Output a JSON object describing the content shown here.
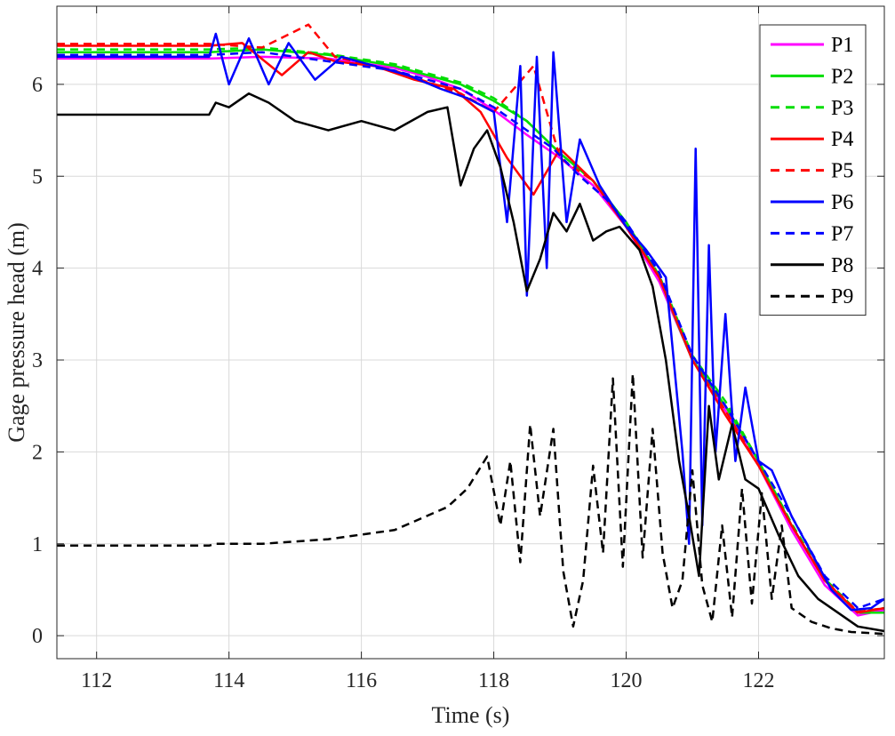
{
  "chart_data": {
    "type": "line",
    "xlabel": "Time (s)",
    "ylabel": "Gage pressure head (m)",
    "xlim": [
      111.4,
      123.9
    ],
    "ylim": [
      -0.25,
      6.85
    ],
    "xticks": [
      112,
      114,
      116,
      118,
      120,
      122
    ],
    "yticks": [
      0,
      1,
      2,
      3,
      4,
      5,
      6
    ],
    "grid": true,
    "legend_position": "top-right",
    "series": [
      {
        "name": "P1",
        "color": "#ff00ff",
        "dash": "solid",
        "x": [
          111.4,
          113.7,
          114.5,
          115.5,
          116.5,
          117.0,
          117.5,
          118.0,
          118.5,
          119.0,
          119.5,
          120.0,
          120.5,
          121.0,
          121.5,
          122.0,
          122.5,
          123.0,
          123.5,
          123.9
        ],
        "y": [
          6.28,
          6.28,
          6.3,
          6.28,
          6.18,
          6.08,
          5.95,
          5.72,
          5.45,
          5.2,
          4.9,
          4.45,
          3.85,
          3.0,
          2.45,
          1.85,
          1.15,
          0.55,
          0.22,
          0.28
        ]
      },
      {
        "name": "P2",
        "color": "#00dd00",
        "dash": "solid",
        "x": [
          111.4,
          113.7,
          114.5,
          115.5,
          116.5,
          117.5,
          118.0,
          118.5,
          119.0,
          119.5,
          120.0,
          120.5,
          120.8,
          121.0,
          121.5,
          122.0,
          122.5,
          123.0,
          123.5,
          123.9
        ],
        "y": [
          6.35,
          6.35,
          6.38,
          6.32,
          6.2,
          6.0,
          5.82,
          5.6,
          5.25,
          4.95,
          4.5,
          3.9,
          3.35,
          3.0,
          2.5,
          1.9,
          1.2,
          0.6,
          0.25,
          0.25
        ]
      },
      {
        "name": "P3",
        "color": "#00dd00",
        "dash": "dashed",
        "x": [
          111.4,
          113.7,
          114.5,
          115.5,
          116.5,
          117.5,
          118.0,
          118.5,
          119.0,
          119.5,
          120.0,
          120.5,
          121.0,
          121.5,
          122.0,
          122.5,
          123.0,
          123.5,
          123.9
        ],
        "y": [
          6.38,
          6.38,
          6.4,
          6.33,
          6.22,
          6.02,
          5.85,
          5.6,
          5.25,
          4.95,
          4.5,
          3.92,
          3.05,
          2.55,
          1.9,
          1.22,
          0.62,
          0.26,
          0.3
        ]
      },
      {
        "name": "P4",
        "color": "#ff0000",
        "dash": "solid",
        "x": [
          111.4,
          113.7,
          114.2,
          114.8,
          115.2,
          115.6,
          116.2,
          116.8,
          117.4,
          117.8,
          118.2,
          118.6,
          119.0,
          119.5,
          120.0,
          120.5,
          121.0,
          121.5,
          122.0,
          122.5,
          123.0,
          123.5,
          123.9
        ],
        "y": [
          6.42,
          6.42,
          6.45,
          6.1,
          6.35,
          6.25,
          6.2,
          6.05,
          5.95,
          5.7,
          5.2,
          4.8,
          5.3,
          4.95,
          4.45,
          3.9,
          3.0,
          2.4,
          1.85,
          1.2,
          0.6,
          0.25,
          0.3
        ]
      },
      {
        "name": "P5",
        "color": "#ff0000",
        "dash": "dashed",
        "x": [
          111.4,
          113.7,
          114.5,
          115.2,
          115.6,
          116.5,
          117.5,
          118.0,
          118.6,
          119.0,
          119.5,
          120.0,
          120.5,
          121.0,
          121.5,
          122.0,
          122.5,
          123.0,
          123.5,
          123.9
        ],
        "y": [
          6.44,
          6.44,
          6.4,
          6.65,
          6.3,
          6.15,
          5.9,
          5.7,
          6.2,
          5.2,
          4.95,
          4.45,
          3.9,
          3.0,
          2.45,
          1.85,
          1.2,
          0.6,
          0.26,
          0.3
        ]
      },
      {
        "name": "P6",
        "color": "#0000ff",
        "dash": "solid",
        "x": [
          111.4,
          113.7,
          113.8,
          114.0,
          114.3,
          114.6,
          114.9,
          115.3,
          115.7,
          116.2,
          116.7,
          117.2,
          117.6,
          118.0,
          118.2,
          118.4,
          118.5,
          118.65,
          118.8,
          118.9,
          119.1,
          119.3,
          119.6,
          120.0,
          120.3,
          120.6,
          120.85,
          120.95,
          121.05,
          121.15,
          121.25,
          121.35,
          121.5,
          121.65,
          121.8,
          122.0,
          122.2,
          122.5,
          122.8,
          123.1,
          123.4,
          123.7,
          123.9
        ],
        "y": [
          6.3,
          6.3,
          6.55,
          6.0,
          6.5,
          6.0,
          6.45,
          6.05,
          6.3,
          6.2,
          6.1,
          5.95,
          5.85,
          5.7,
          4.5,
          6.2,
          3.7,
          6.3,
          4.0,
          6.35,
          4.5,
          5.4,
          4.9,
          4.45,
          4.2,
          3.9,
          2.0,
          1.0,
          5.3,
          1.2,
          4.25,
          2.0,
          3.5,
          1.9,
          2.7,
          1.9,
          1.8,
          1.3,
          0.9,
          0.5,
          0.28,
          0.3,
          0.4
        ]
      },
      {
        "name": "P7",
        "color": "#0000ff",
        "dash": "dashed",
        "x": [
          111.4,
          113.7,
          114.5,
          115.5,
          116.5,
          117.5,
          118.0,
          118.5,
          118.9,
          119.3,
          119.7,
          120.0,
          120.5,
          121.0,
          121.5,
          122.0,
          122.5,
          123.0,
          123.5,
          123.9
        ],
        "y": [
          6.32,
          6.32,
          6.35,
          6.25,
          6.15,
          5.95,
          5.75,
          5.5,
          5.3,
          5.0,
          4.75,
          4.5,
          3.95,
          3.05,
          2.5,
          1.9,
          1.3,
          0.65,
          0.3,
          0.4
        ]
      },
      {
        "name": "P8",
        "color": "#000000",
        "dash": "solid",
        "x": [
          111.4,
          113.7,
          113.8,
          114.0,
          114.3,
          114.6,
          115.0,
          115.5,
          116.0,
          116.5,
          117.0,
          117.3,
          117.5,
          117.7,
          117.9,
          118.1,
          118.3,
          118.5,
          118.7,
          118.9,
          119.1,
          119.3,
          119.5,
          119.7,
          119.9,
          120.2,
          120.4,
          120.6,
          120.8,
          120.95,
          121.1,
          121.25,
          121.4,
          121.6,
          121.8,
          122.0,
          122.3,
          122.6,
          122.9,
          123.2,
          123.5,
          123.9
        ],
        "y": [
          5.67,
          5.67,
          5.8,
          5.75,
          5.9,
          5.8,
          5.6,
          5.5,
          5.6,
          5.5,
          5.7,
          5.75,
          4.9,
          5.3,
          5.5,
          5.1,
          4.5,
          3.75,
          4.1,
          4.6,
          4.4,
          4.7,
          4.3,
          4.4,
          4.45,
          4.2,
          3.8,
          3.0,
          1.9,
          1.3,
          0.65,
          2.5,
          1.7,
          2.3,
          1.7,
          1.6,
          1.1,
          0.65,
          0.4,
          0.25,
          0.1,
          0.05
        ]
      },
      {
        "name": "P9",
        "color": "#000000",
        "dash": "dashed",
        "x": [
          111.4,
          113.7,
          113.8,
          114.5,
          115.5,
          116.5,
          117.3,
          117.6,
          117.9,
          118.1,
          118.25,
          118.4,
          118.55,
          118.7,
          118.9,
          119.05,
          119.2,
          119.35,
          119.5,
          119.65,
          119.8,
          119.95,
          120.1,
          120.25,
          120.4,
          120.55,
          120.7,
          120.85,
          121.0,
          121.15,
          121.3,
          121.45,
          121.6,
          121.75,
          121.9,
          122.05,
          122.2,
          122.35,
          122.5,
          122.8,
          123.1,
          123.4,
          123.9
        ],
        "y": [
          0.98,
          0.98,
          1.0,
          1.0,
          1.05,
          1.15,
          1.4,
          1.6,
          1.95,
          1.2,
          1.9,
          0.8,
          2.3,
          1.3,
          2.25,
          0.7,
          0.1,
          0.6,
          1.85,
          0.9,
          2.8,
          0.75,
          2.85,
          0.85,
          2.25,
          0.9,
          0.3,
          0.6,
          1.8,
          0.55,
          0.15,
          1.2,
          0.2,
          1.6,
          0.35,
          1.55,
          0.4,
          1.2,
          0.3,
          0.15,
          0.08,
          0.04,
          0.02
        ]
      }
    ]
  }
}
